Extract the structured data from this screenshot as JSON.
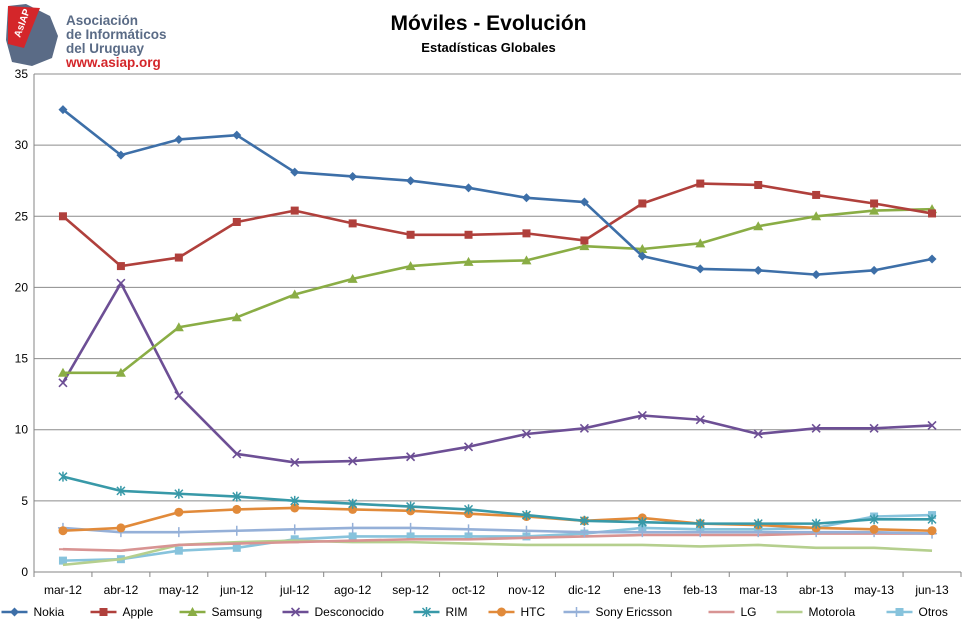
{
  "logo": {
    "badge": "AsIAP",
    "line1": "Asociación",
    "line2": "de Informáticos",
    "line3": "del Uruguay",
    "url": "www.asiap.org"
  },
  "chart_data": {
    "type": "line",
    "title": "Móviles - Evolución",
    "subtitle": "Estadísticas Globales",
    "xlabel": "",
    "ylabel": "",
    "ylim": [
      0,
      35
    ],
    "yticks": [
      0,
      5,
      10,
      15,
      20,
      25,
      30,
      35
    ],
    "grid": "horizontal",
    "legend": "bottom",
    "categories": [
      "mar-12",
      "abr-12",
      "may-12",
      "jun-12",
      "jul-12",
      "ago-12",
      "sep-12",
      "oct-12",
      "nov-12",
      "dic-12",
      "ene-13",
      "feb-13",
      "mar-13",
      "abr-13",
      "may-13",
      "jun-13"
    ],
    "series": [
      {
        "name": "Nokia",
        "color": "#3d6fa8",
        "marker": "diamond",
        "values": [
          32.5,
          29.3,
          30.4,
          30.7,
          28.1,
          27.8,
          27.5,
          27.0,
          26.3,
          26.0,
          22.2,
          21.3,
          21.2,
          20.9,
          21.2,
          22.0
        ]
      },
      {
        "name": "Apple",
        "color": "#b0403c",
        "marker": "square",
        "values": [
          25.0,
          21.5,
          22.1,
          24.6,
          25.4,
          24.5,
          23.7,
          23.7,
          23.8,
          23.3,
          25.9,
          27.3,
          27.2,
          26.5,
          25.9,
          25.2
        ]
      },
      {
        "name": "Samsung",
        "color": "#8aad45",
        "marker": "triangle",
        "values": [
          14.0,
          14.0,
          17.2,
          17.9,
          19.5,
          20.6,
          21.5,
          21.8,
          21.9,
          22.9,
          22.7,
          23.1,
          24.3,
          25.0,
          25.4,
          25.5
        ]
      },
      {
        "name": "Desconocido",
        "color": "#6d4f95",
        "marker": "x",
        "values": [
          13.3,
          20.3,
          12.4,
          8.3,
          7.7,
          7.8,
          8.1,
          8.8,
          9.7,
          10.1,
          11.0,
          10.7,
          9.7,
          10.1,
          10.1,
          10.3
        ]
      },
      {
        "name": "RIM",
        "color": "#3899a8",
        "marker": "star",
        "values": [
          6.7,
          5.7,
          5.5,
          5.3,
          5.0,
          4.8,
          4.6,
          4.4,
          4.0,
          3.6,
          3.5,
          3.4,
          3.4,
          3.4,
          3.7,
          3.7
        ]
      },
      {
        "name": "HTC",
        "color": "#e18a3a",
        "marker": "circle",
        "values": [
          2.9,
          3.1,
          4.2,
          4.4,
          4.5,
          4.4,
          4.3,
          4.1,
          3.9,
          3.6,
          3.8,
          3.4,
          3.3,
          3.1,
          3.0,
          2.9
        ]
      },
      {
        "name": "Sony Ericsson",
        "color": "#95b0d8",
        "marker": "plus",
        "values": [
          3.1,
          2.8,
          2.8,
          2.9,
          3.0,
          3.1,
          3.1,
          3.0,
          2.9,
          2.8,
          2.8,
          2.8,
          2.8,
          2.8,
          2.8,
          2.7
        ]
      },
      {
        "name": "LG",
        "color": "#d89493",
        "marker": "dash",
        "values": [
          1.6,
          1.5,
          1.9,
          2.0,
          2.1,
          2.2,
          2.3,
          2.3,
          2.4,
          2.5,
          2.6,
          2.6,
          2.6,
          2.7,
          2.7,
          2.7
        ]
      },
      {
        "name": "Motorola",
        "color": "#b5cf8e",
        "marker": "none",
        "values": [
          0.5,
          0.9,
          1.9,
          2.1,
          2.2,
          2.1,
          2.1,
          2.0,
          1.9,
          1.9,
          1.9,
          1.8,
          1.9,
          1.7,
          1.7,
          1.5
        ]
      },
      {
        "name": "Otros",
        "color": "#87c3dc",
        "marker": "square",
        "values": [
          0.8,
          0.9,
          1.5,
          1.7,
          2.3,
          2.5,
          2.5,
          2.5,
          2.5,
          2.7,
          3.1,
          3.0,
          3.0,
          3.1,
          3.9,
          4.0
        ]
      }
    ]
  }
}
